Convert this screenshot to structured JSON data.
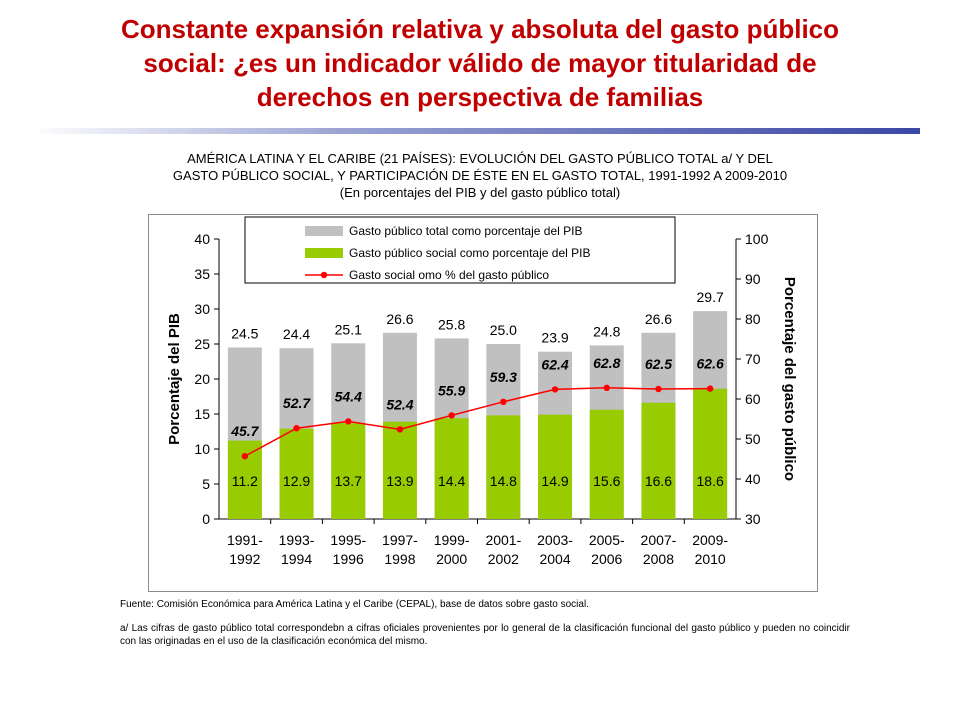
{
  "slide": {
    "title_lines": [
      "Constante expansión relativa y absoluta del gasto público",
      "social: ¿es un indicador válido de mayor titularidad de",
      "derechos en perspectiva de familias"
    ]
  },
  "chart_heading": {
    "lines": [
      "AMÉRICA LATINA Y EL CARIBE (21 PAÍSES): EVOLUCIÓN DEL GASTO PÚBLICO TOTAL a/ Y DEL",
      "GASTO PÚBLICO SOCIAL, Y PARTICIPACIÓN DE ÉSTE EN EL GASTO TOTAL, 1991-1992 A 2009-2010",
      "(En porcentajes del PIB y del gasto público total)"
    ]
  },
  "chart_data": {
    "type": "bar",
    "categories": [
      [
        "1991-",
        "1992"
      ],
      [
        "1993-",
        "1994"
      ],
      [
        "1995-",
        "1996"
      ],
      [
        "1997-",
        "1998"
      ],
      [
        "1999-",
        "2000"
      ],
      [
        "2001-",
        "2002"
      ],
      [
        "2003-",
        "2004"
      ],
      [
        "2005-",
        "2006"
      ],
      [
        "2007-",
        "2008"
      ],
      [
        "2009-",
        "2010"
      ]
    ],
    "series": [
      {
        "name": "Gasto público total como porcentaje del PIB",
        "kind": "bar",
        "axis": "left",
        "color": "#c0c0c0",
        "values": [
          24.5,
          24.4,
          25.1,
          26.6,
          25.8,
          25.0,
          23.9,
          24.8,
          26.6,
          29.7
        ],
        "labels": [
          "24.5",
          "24.4",
          "25.1",
          "26.6",
          "25.8",
          "25.0",
          "23.9",
          "24.8",
          "26.6",
          "29.7"
        ]
      },
      {
        "name": "Gasto público social como porcentaje del PIB",
        "kind": "bar",
        "axis": "left",
        "color": "#99cc00",
        "values": [
          11.2,
          12.9,
          13.7,
          13.9,
          14.4,
          14.8,
          14.9,
          15.6,
          16.6,
          18.6
        ],
        "labels": [
          "11.2",
          "12.9",
          "13.7",
          "13.9",
          "14.4",
          "14.8",
          "14.9",
          "15.6",
          "16.6",
          "18.6"
        ]
      },
      {
        "name": "Gasto social omo % del gasto público",
        "kind": "line",
        "axis": "right",
        "color": "#ff0000",
        "values": [
          45.7,
          52.7,
          54.4,
          52.4,
          55.9,
          59.3,
          62.4,
          62.8,
          62.5,
          62.6
        ],
        "labels": [
          "45.7",
          "52.7",
          "54.4",
          "52.4",
          "55.9",
          "59.3",
          "62.4",
          "62.8",
          "62.5",
          "62.6"
        ]
      }
    ],
    "ylabel": "Porcentaje del PIB",
    "y2label": "Porcentaje del gasto público",
    "ylim": [
      0,
      40
    ],
    "yticks": [
      "0",
      "5",
      "10",
      "15",
      "20",
      "25",
      "30",
      "35",
      "40"
    ],
    "y2lim": [
      30,
      100
    ],
    "y2ticks": [
      "30",
      "40",
      "50",
      "60",
      "70",
      "80",
      "90",
      "100"
    ],
    "grid": false,
    "legend_position": "top-center"
  },
  "notes": {
    "source": "Fuente: Comisión Económica para América Latina y el Caribe (CEPAL), base de datos sobre gasto social.",
    "footnote": "a/ Las cifras de gasto público total correspondebn a cifras oficiales provenientes por lo general de la clasificación funcional del gasto público y pueden no coincidir con las originadas en el uso de la clasificación económica del mismo."
  }
}
